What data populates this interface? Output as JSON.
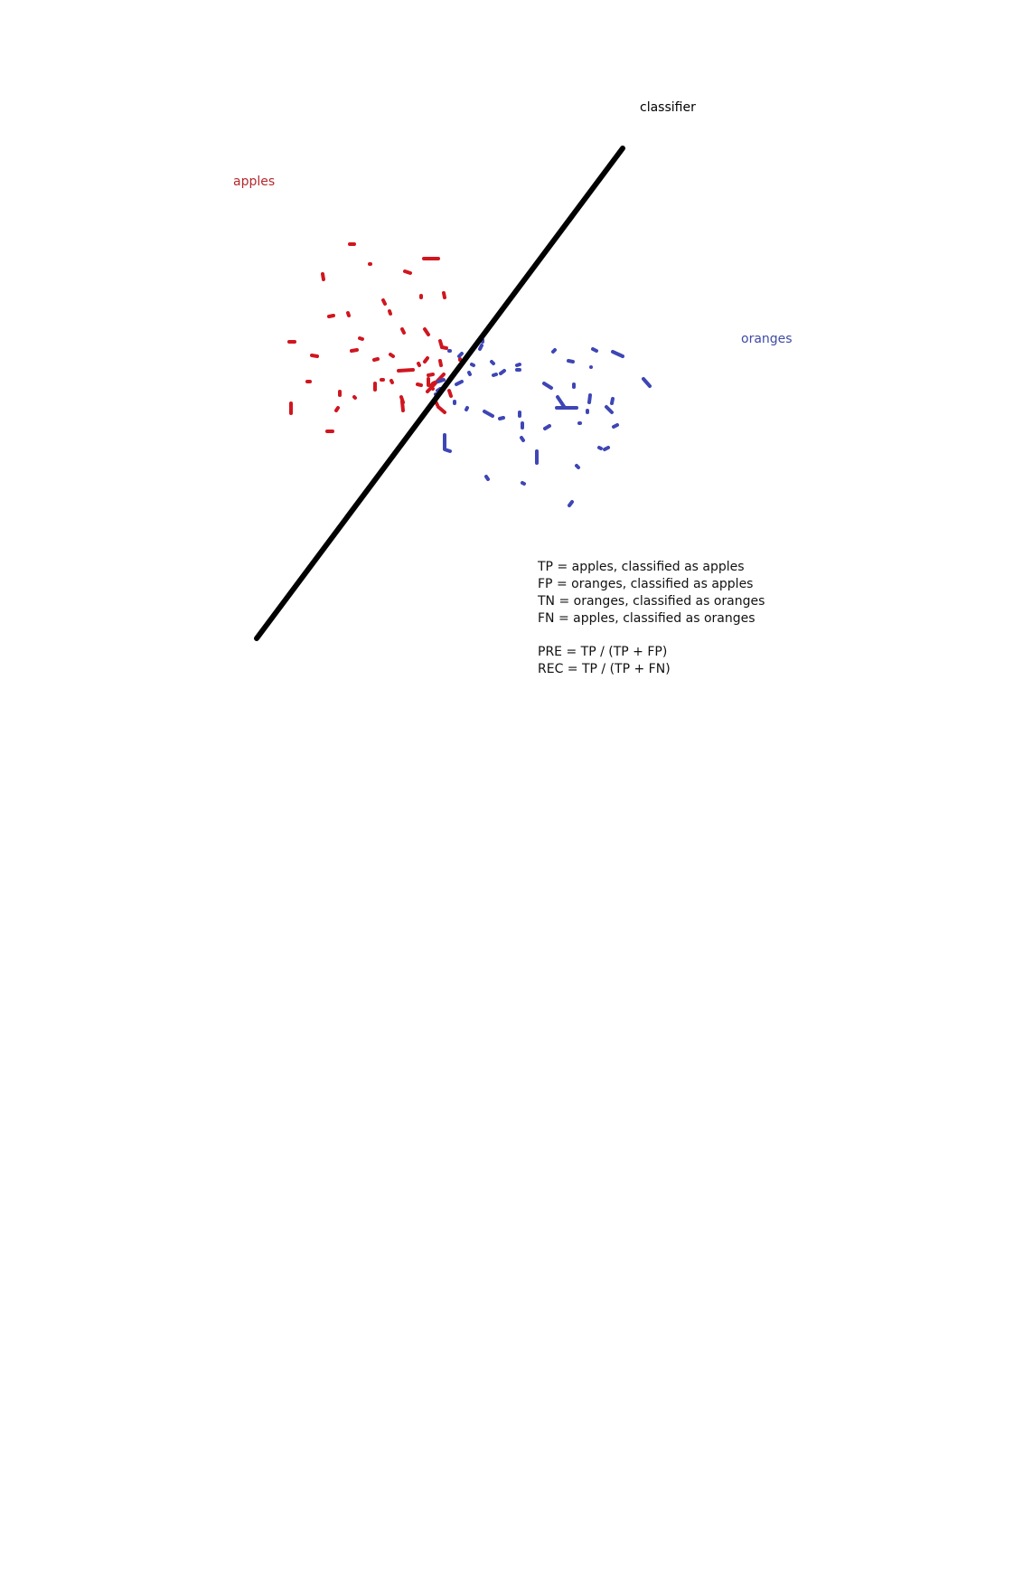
{
  "labels": {
    "classifier": "classifier",
    "apples": "apples",
    "oranges": "oranges"
  },
  "colors": {
    "apples": "#d0161f",
    "oranges": "#3e46b5",
    "classifier": "#000000",
    "apples_label": "#b6282c",
    "oranges_label": "#3f4aa6",
    "text": "#111111"
  },
  "definitions": [
    "TP = apples, classified as apples",
    "FP = oranges, classified as apples",
    "TN = oranges, classified as oranges",
    "FN = apples, classified as oranges"
  ],
  "formulas": [
    "PRE = TP / (TP + FP)",
    "REC = TP / (TP + FN)"
  ]
}
